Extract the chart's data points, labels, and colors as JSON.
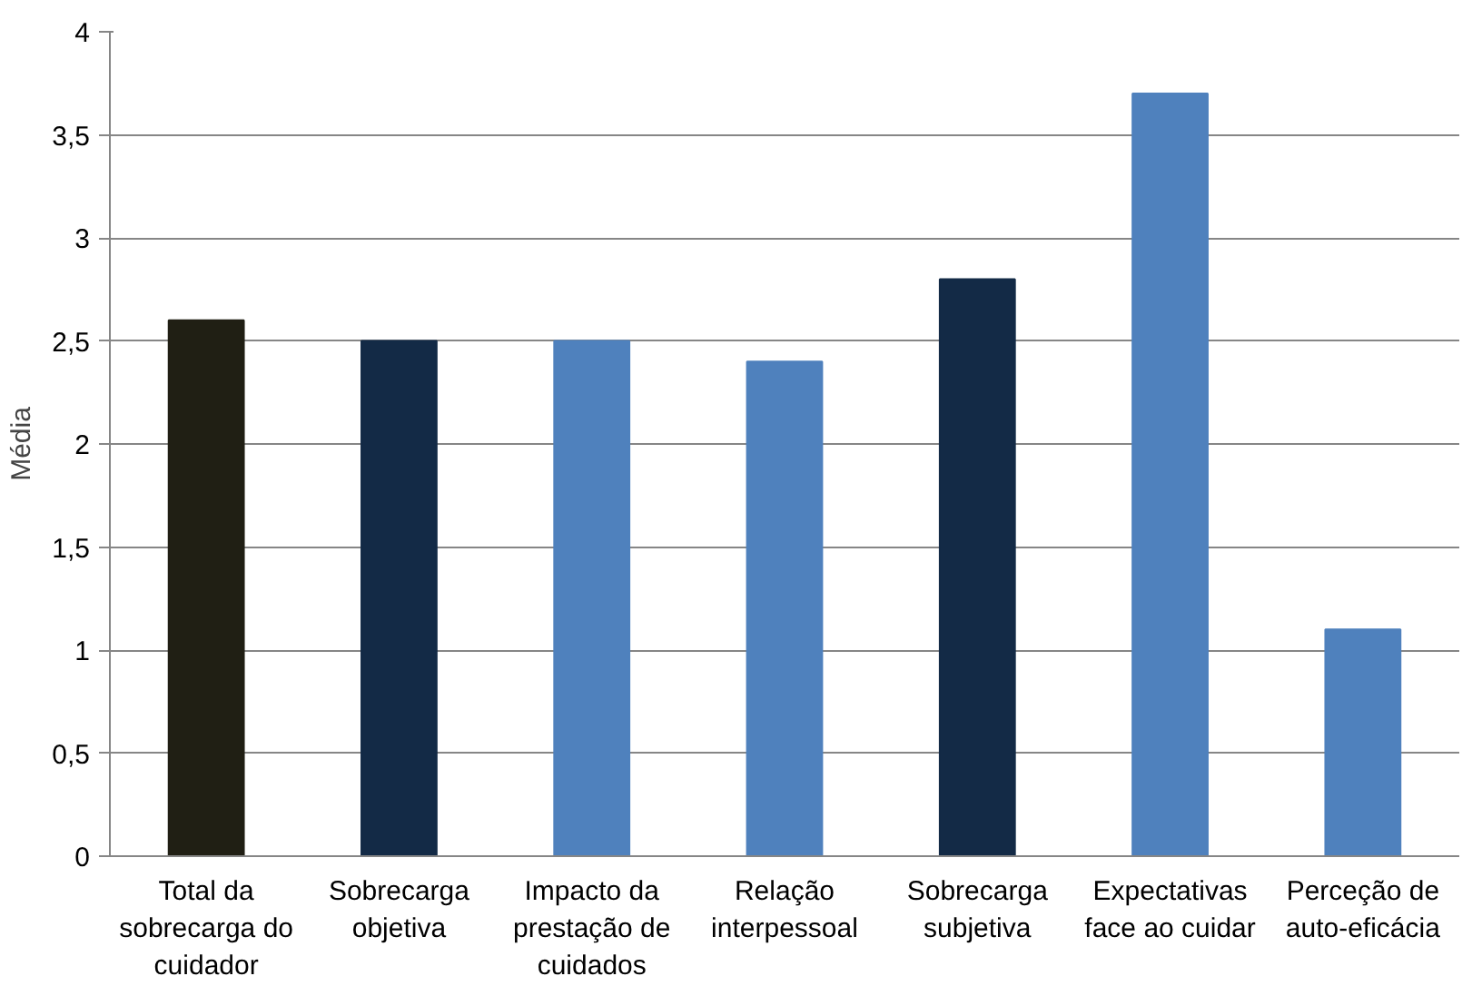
{
  "chart_data": {
    "type": "bar",
    "ylabel": "Média",
    "categories": [
      "Total da sobrecarga do cuidador",
      "Sobrecarga objetiva",
      "Impacto da prestação de cuidados",
      "Relação interpessoal",
      "Sobrecarga subjetiva",
      "Expectativas face ao cuidar",
      "Perceção de auto-eficácia"
    ],
    "values": [
      2.6,
      2.5,
      2.5,
      2.4,
      2.8,
      3.7,
      1.1
    ],
    "colors": [
      "#201f14",
      "#132a46",
      "#4f81bd",
      "#4f81bd",
      "#132a46",
      "#4f81bd",
      "#4f81bd"
    ],
    "ylim": [
      0,
      4
    ],
    "yticks": [
      0,
      {
        "value": 0.5,
        "label": "0,5"
      },
      1,
      {
        "value": 1.5,
        "label": "1,5"
      },
      2,
      {
        "value": 2.5,
        "label": "2,5"
      },
      3,
      {
        "value": 3.5,
        "label": "3,5"
      },
      4
    ],
    "grid": "y"
  }
}
